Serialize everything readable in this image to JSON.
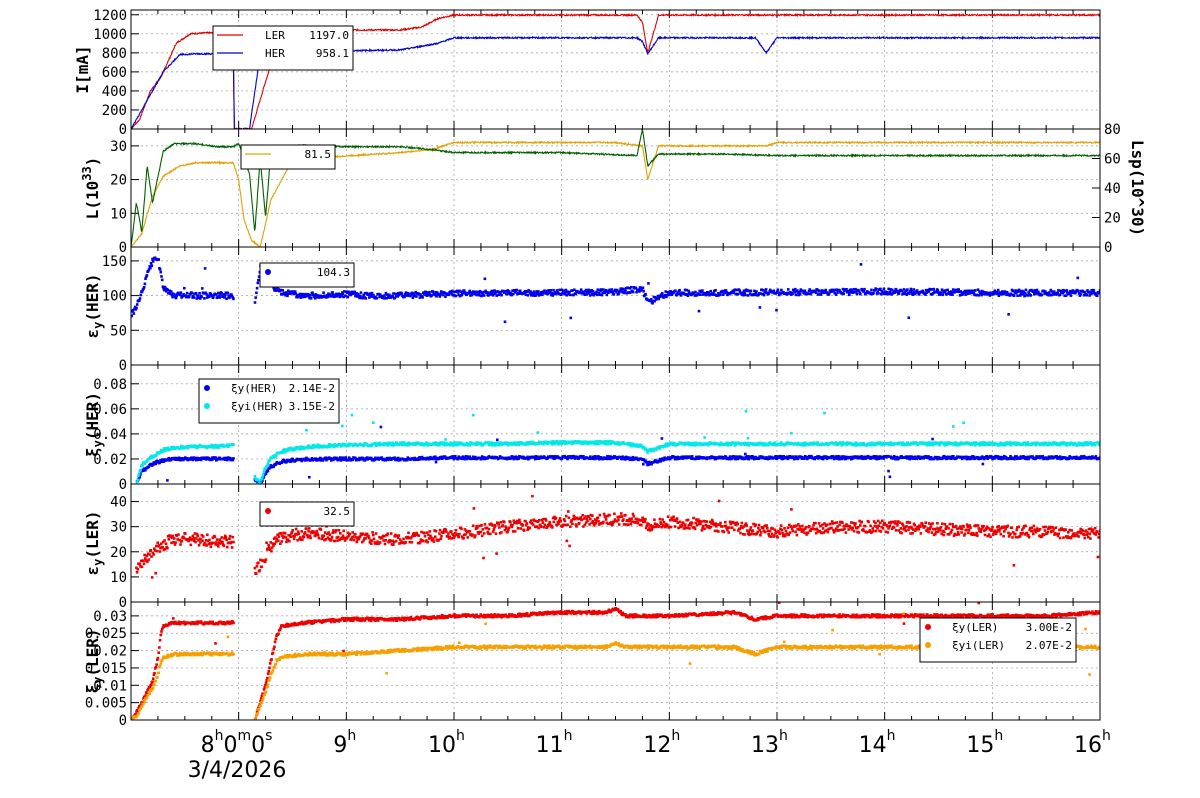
{
  "chart_data": [
    {
      "type": "line",
      "panel": "current",
      "ylabel": "I[mA]",
      "ylim": [
        0,
        1250
      ],
      "yticks": [
        0,
        200,
        400,
        600,
        800,
        1000,
        1200
      ],
      "grid": true,
      "legend": {
        "placement": "top-left",
        "entries": [
          {
            "name": "LER",
            "value": "1197.0"
          },
          {
            "name": "HER",
            "value": "958.1"
          }
        ]
      },
      "series": [
        {
          "name": "LER",
          "color": "#e00000",
          "style": "line",
          "x": [
            0,
            0.08,
            0.18,
            0.28,
            0.42,
            0.55,
            0.7,
            0.85,
            0.92,
            0.95,
            0.96,
            1.04,
            1.12,
            1.25,
            1.38,
            1.45,
            1.8,
            2.2,
            2.5,
            2.7,
            2.85,
            3.0,
            3.5,
            4.0,
            4.5,
            4.7,
            4.75,
            4.8,
            4.9,
            5.2,
            5.8,
            6.5,
            7.0,
            7.5,
            8.0,
            8.5,
            9.0
          ],
          "y": [
            0,
            100,
            400,
            550,
            900,
            1000,
            1010,
            1010,
            1010,
            1010,
            0,
            0,
            0,
            500,
            950,
            1030,
            1040,
            1040,
            1040,
            1070,
            1160,
            1197,
            1197,
            1197,
            1197,
            1197,
            1120,
            800,
            1197,
            1197,
            1197,
            1197,
            1197,
            1197,
            1197,
            1197,
            1197
          ]
        },
        {
          "name": "HER",
          "color": "#0000cc",
          "style": "line",
          "x": [
            0,
            0.1,
            0.2,
            0.3,
            0.45,
            0.6,
            0.75,
            0.9,
            0.95,
            0.96,
            1.04,
            1.1,
            1.2,
            1.35,
            1.45,
            1.8,
            2.5,
            2.7,
            2.85,
            3.0,
            3.5,
            4.0,
            4.5,
            4.7,
            4.75,
            4.8,
            4.9,
            5.5,
            5.8,
            5.85,
            5.9,
            6.0,
            6.5,
            7.0,
            7.5,
            8.0,
            8.5,
            9.0
          ],
          "y": [
            0,
            200,
            400,
            600,
            780,
            790,
            790,
            790,
            790,
            0,
            0,
            0,
            780,
            800,
            810,
            820,
            830,
            870,
            900,
            958,
            958,
            958,
            958,
            958,
            920,
            790,
            958,
            958,
            958,
            880,
            800,
            958,
            958,
            958,
            958,
            958,
            958,
            958
          ]
        }
      ]
    },
    {
      "type": "line",
      "panel": "luminosity",
      "ylabel": "L(10^33)",
      "ylim": [
        0,
        35
      ],
      "yticks": [
        0,
        10,
        20,
        30
      ],
      "ylabel_right": "Lsp(10^30)",
      "ylim_right": [
        0,
        80
      ],
      "yticks_right": [
        0,
        20,
        40,
        60,
        80
      ],
      "grid": true,
      "legend": {
        "placement": "top-left",
        "entries": [
          {
            "name": "",
            "value": "81.5"
          }
        ]
      },
      "series": [
        {
          "name": "L",
          "color": "#e0a000",
          "axis": "left",
          "style": "line",
          "x": [
            0,
            0.1,
            0.2,
            0.3,
            0.45,
            0.6,
            0.8,
            0.95,
            1.0,
            1.05,
            1.12,
            1.2,
            1.3,
            1.45,
            1.6,
            2.0,
            2.5,
            2.8,
            3.0,
            4.0,
            4.5,
            4.75,
            4.78,
            4.8,
            4.9,
            5.5,
            5.9,
            6.0,
            6.5,
            7.0,
            7.5,
            8.0,
            8.5,
            9.0
          ],
          "y": [
            0,
            4,
            15,
            21,
            24,
            25,
            25,
            25,
            20,
            8,
            2,
            0,
            14,
            23,
            26,
            27,
            28,
            29,
            31,
            31,
            31,
            30,
            24,
            20,
            30,
            30,
            30,
            31,
            31,
            31,
            31,
            31,
            31,
            31
          ]
        },
        {
          "name": "Lsp",
          "color": "#006000",
          "axis": "right",
          "style": "line",
          "x": [
            0,
            0.05,
            0.1,
            0.15,
            0.2,
            0.3,
            0.4,
            0.6,
            0.8,
            0.95,
            1.0,
            1.1,
            1.15,
            1.2,
            1.25,
            1.3,
            1.4,
            1.6,
            2.0,
            2.5,
            2.8,
            3.0,
            3.5,
            4.0,
            4.7,
            4.75,
            4.8,
            4.9,
            5.5,
            6.0,
            6.5,
            7.0,
            7.5,
            8.0,
            8.5,
            9.0
          ],
          "y": [
            0,
            30,
            10,
            55,
            30,
            65,
            70,
            70,
            68,
            68,
            70,
            50,
            10,
            60,
            20,
            65,
            68,
            69,
            68,
            68,
            66,
            64,
            64,
            64,
            62,
            80,
            55,
            63,
            63,
            62,
            62,
            62,
            62,
            62,
            62,
            62
          ]
        }
      ]
    },
    {
      "type": "scatter",
      "panel": "xi_y_her_percent",
      "ylabel": "εy(HER)",
      "ylim": [
        0,
        170
      ],
      "yticks": [
        0,
        50,
        100,
        150
      ],
      "grid": true,
      "legend": {
        "placement": "top-left",
        "entries": [
          {
            "name": "",
            "value": "104.3"
          }
        ]
      },
      "series": [
        {
          "name": "εy(HER)",
          "color": "#0000ee",
          "style": "points",
          "x": [
            0,
            0.08,
            0.15,
            0.2,
            0.25,
            0.3,
            0.4,
            0.5,
            0.6,
            0.7,
            0.8,
            0.95,
            1.1,
            1.15,
            1.2,
            1.25,
            1.3,
            1.4,
            1.6,
            1.8,
            2.0,
            2.2,
            2.5,
            3.0,
            3.5,
            4.0,
            4.5,
            4.75,
            4.8,
            5.0,
            5.5,
            6.0,
            6.5,
            7.0,
            7.5,
            8.0,
            8.5,
            9.0
          ],
          "y": [
            70,
            95,
            130,
            150,
            155,
            110,
            100,
            102,
            100,
            100,
            101,
            100,
            60,
            90,
            140,
            120,
            115,
            105,
            100,
            100,
            102,
            100,
            100,
            103,
            104,
            104,
            105,
            110,
            90,
            104,
            104,
            105,
            105,
            106,
            105,
            104,
            104,
            104
          ]
        }
      ]
    },
    {
      "type": "scatter",
      "panel": "xi_y_her",
      "ylabel": "ξy(HER)",
      "ylim": [
        0,
        0.095
      ],
      "yticks": [
        0,
        0.02,
        0.04,
        0.06,
        0.08
      ],
      "ytick_labels": [
        "0",
        "0.02",
        "0.04",
        "0.06",
        "0.08"
      ],
      "grid": true,
      "legend": {
        "placement": "top-left",
        "entries": [
          {
            "name": "ξy(HER)",
            "value": "2.14E-2"
          },
          {
            "name": "ξyi(HER)",
            "value": "3.15E-2"
          }
        ]
      },
      "series": [
        {
          "name": "ξy(HER)",
          "color": "#0000ee",
          "style": "points",
          "x": [
            0.05,
            0.1,
            0.2,
            0.3,
            0.4,
            0.6,
            0.8,
            0.95,
            1.2,
            1.25,
            1.3,
            1.4,
            1.5,
            1.7,
            2.0,
            2.5,
            3.0,
            3.5,
            4.0,
            4.5,
            4.75,
            4.8,
            5.0,
            5.5,
            6.0,
            6.5,
            7.0,
            7.5,
            8.0,
            8.5,
            9.0
          ],
          "y": [
            0.0,
            0.01,
            0.016,
            0.019,
            0.02,
            0.02,
            0.02,
            0.02,
            0.0,
            0.008,
            0.014,
            0.018,
            0.019,
            0.02,
            0.02,
            0.02,
            0.021,
            0.021,
            0.021,
            0.021,
            0.02,
            0.016,
            0.021,
            0.021,
            0.021,
            0.021,
            0.021,
            0.021,
            0.021,
            0.021,
            0.021
          ]
        },
        {
          "name": "ξyi(HER)",
          "color": "#00e8e8",
          "style": "points",
          "x": [
            0.05,
            0.1,
            0.2,
            0.3,
            0.4,
            0.6,
            0.8,
            0.95,
            1.2,
            1.25,
            1.3,
            1.4,
            1.5,
            1.7,
            2.0,
            2.5,
            3.0,
            3.5,
            4.0,
            4.5,
            4.75,
            4.8,
            5.0,
            5.5,
            6.0,
            6.5,
            7.0,
            7.5,
            8.0,
            8.5,
            9.0
          ],
          "y": [
            0.0,
            0.015,
            0.022,
            0.027,
            0.029,
            0.03,
            0.03,
            0.031,
            0.0,
            0.013,
            0.02,
            0.026,
            0.028,
            0.03,
            0.031,
            0.032,
            0.032,
            0.032,
            0.033,
            0.033,
            0.03,
            0.026,
            0.032,
            0.032,
            0.032,
            0.032,
            0.032,
            0.032,
            0.032,
            0.032,
            0.032
          ]
        }
      ]
    },
    {
      "type": "scatter",
      "panel": "xi_y_ler_percent",
      "ylabel": "εy(LER)",
      "ylim": [
        0,
        47
      ],
      "yticks": [
        0,
        10,
        20,
        30,
        40
      ],
      "grid": true,
      "legend": {
        "placement": "top-left",
        "entries": [
          {
            "name": "",
            "value": "32.5"
          }
        ]
      },
      "series": [
        {
          "name": "εy(LER)",
          "color": "#ee0000",
          "style": "points",
          "x": [
            0.05,
            0.1,
            0.2,
            0.3,
            0.4,
            0.6,
            0.8,
            0.95,
            1.15,
            1.2,
            1.3,
            1.4,
            1.6,
            1.8,
            2.0,
            2.5,
            3.0,
            3.5,
            4.0,
            4.5,
            4.75,
            4.8,
            5.0,
            5.5,
            6.0,
            6.5,
            7.0,
            7.5,
            8.0,
            8.5,
            9.0
          ],
          "y": [
            12,
            16,
            20,
            23,
            25,
            25,
            24,
            24,
            12,
            15,
            22,
            26,
            27,
            27,
            26,
            25,
            27,
            30,
            32,
            33,
            33,
            30,
            32,
            30,
            28,
            30,
            30,
            29,
            28,
            28,
            27
          ]
        }
      ]
    },
    {
      "type": "scatter",
      "panel": "xi_y_ler",
      "ylabel": "ξy(LER)",
      "ylim": [
        0,
        0.034
      ],
      "yticks": [
        0,
        0.005,
        0.01,
        0.015,
        0.02,
        0.025,
        0.03
      ],
      "ytick_labels": [
        "0",
        "0.005",
        "0.01",
        "0.015",
        "0.02",
        "0.025",
        "0.03"
      ],
      "grid": true,
      "legend": {
        "placement": "top-right",
        "entries": [
          {
            "name": "ξy(LER)",
            "value": "3.00E-2"
          },
          {
            "name": "ξyi(LER)",
            "value": "2.07E-2"
          }
        ]
      },
      "series": [
        {
          "name": "ξy(LER)",
          "color": "#ee0000",
          "style": "points",
          "x": [
            0,
            0.05,
            0.1,
            0.15,
            0.2,
            0.25,
            0.28,
            0.3,
            0.4,
            0.6,
            0.8,
            0.95,
            1.15,
            1.2,
            1.25,
            1.3,
            1.35,
            1.4,
            1.6,
            2.0,
            2.5,
            3.0,
            3.5,
            4.0,
            4.4,
            4.5,
            4.6,
            5.0,
            5.6,
            5.8,
            6.0,
            6.5,
            7.0,
            7.5,
            8.0,
            8.5,
            9.0
          ],
          "y": [
            0,
            0.002,
            0.005,
            0.008,
            0.011,
            0.018,
            0.025,
            0.027,
            0.028,
            0.028,
            0.028,
            0.028,
            0.0,
            0.005,
            0.01,
            0.017,
            0.024,
            0.027,
            0.028,
            0.029,
            0.029,
            0.03,
            0.03,
            0.031,
            0.031,
            0.032,
            0.03,
            0.03,
            0.031,
            0.029,
            0.03,
            0.03,
            0.03,
            0.03,
            0.03,
            0.03,
            0.031
          ]
        },
        {
          "name": "ξyi(LER)",
          "color": "#f5a000",
          "style": "points",
          "x": [
            0,
            0.05,
            0.1,
            0.15,
            0.2,
            0.25,
            0.28,
            0.3,
            0.4,
            0.6,
            0.8,
            0.95,
            1.15,
            1.2,
            1.25,
            1.3,
            1.35,
            1.4,
            1.6,
            2.0,
            2.5,
            3.0,
            3.5,
            4.0,
            4.4,
            4.5,
            4.6,
            5.0,
            5.6,
            5.8,
            6.0,
            6.5,
            7.0,
            7.5,
            8.0,
            8.5,
            9.0
          ],
          "y": [
            0,
            0.001,
            0.004,
            0.007,
            0.009,
            0.013,
            0.017,
            0.018,
            0.019,
            0.019,
            0.019,
            0.019,
            0.0,
            0.004,
            0.008,
            0.013,
            0.017,
            0.018,
            0.019,
            0.019,
            0.02,
            0.021,
            0.021,
            0.021,
            0.021,
            0.022,
            0.021,
            0.021,
            0.021,
            0.019,
            0.021,
            0.021,
            0.021,
            0.021,
            0.021,
            0.021,
            0.021
          ]
        }
      ]
    }
  ],
  "x_axis": {
    "unit": "hours after 07:00 on 3/4/2026",
    "range": [
      0,
      9
    ],
    "date_label": "3/4/2026",
    "ticks": [
      {
        "x": 1,
        "parts": [
          "8",
          "h",
          "0",
          "m",
          "0",
          "s"
        ]
      },
      {
        "x": 2,
        "parts": [
          "9",
          "h"
        ]
      },
      {
        "x": 3,
        "parts": [
          "10",
          "h"
        ]
      },
      {
        "x": 4,
        "parts": [
          "11",
          "h"
        ]
      },
      {
        "x": 5,
        "parts": [
          "12",
          "h"
        ]
      },
      {
        "x": 6,
        "parts": [
          "13",
          "h"
        ]
      },
      {
        "x": 7,
        "parts": [
          "14",
          "h"
        ]
      },
      {
        "x": 8,
        "parts": [
          "15",
          "h"
        ]
      },
      {
        "x": 9,
        "parts": [
          "16",
          "h"
        ]
      }
    ]
  }
}
